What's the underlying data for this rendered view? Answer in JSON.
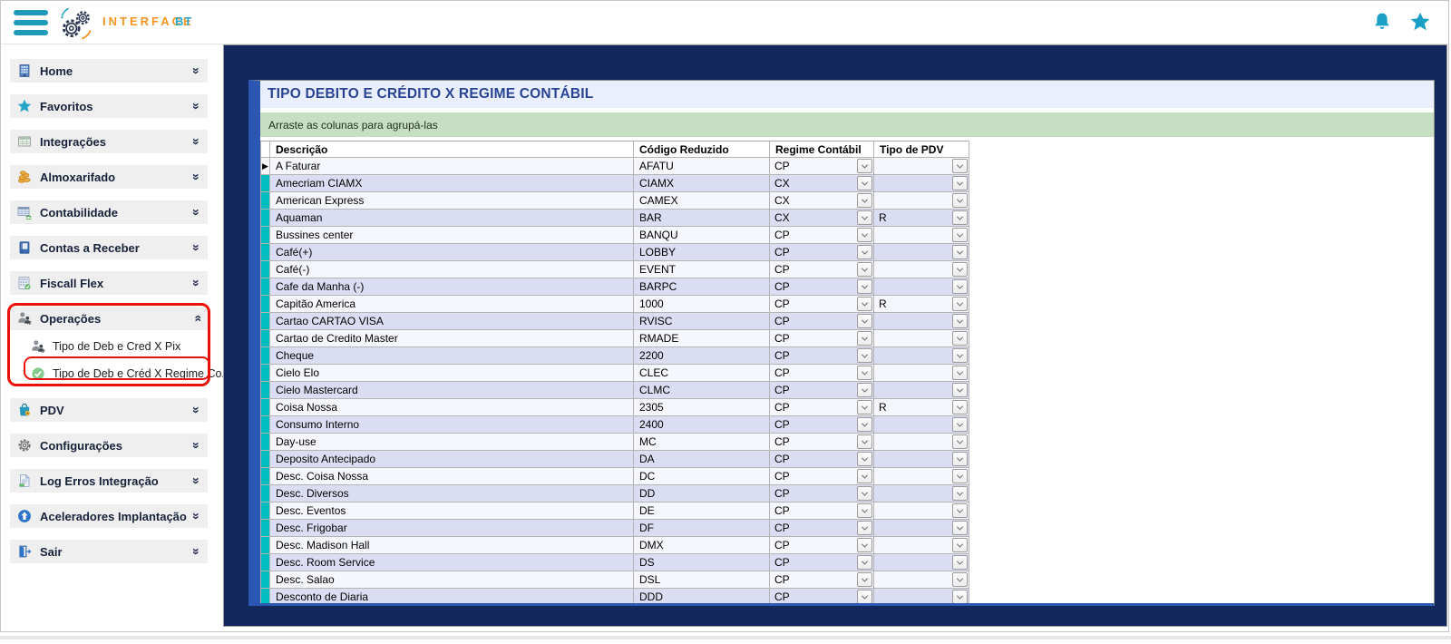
{
  "header": {
    "brand": "INTERFACE",
    "brand_suffix": "BT",
    "icons": [
      "hamburger-menu-icon",
      "gears-logo",
      "notifications-bell-icon",
      "favorites-star-icon"
    ],
    "accent_teal": "#1f9ab8",
    "accent_orange": "#f7941e"
  },
  "sidebar": {
    "items": [
      {
        "id": "home",
        "label": "Home",
        "icon": "building-icon"
      },
      {
        "id": "favoritos",
        "label": "Favoritos",
        "icon": "star-icon"
      },
      {
        "id": "integracoes",
        "label": "Integrações",
        "icon": "table-icon"
      },
      {
        "id": "almoxarifado",
        "label": "Almoxarifado",
        "icon": "coins-icon"
      },
      {
        "id": "contabilidade",
        "label": "Contabilidade",
        "icon": "spreadsheet-sync-icon"
      },
      {
        "id": "contas-a-receber",
        "label": "Contas a Receber",
        "icon": "ledger-book-icon"
      },
      {
        "id": "fiscall-flex",
        "label": "Fiscall Flex",
        "icon": "calculator-icon"
      },
      {
        "id": "operacoes",
        "label": "Operações",
        "icon": "users-gear-icon",
        "expanded": true,
        "children": [
          {
            "id": "tipo-deb-cred-pix",
            "label": "Tipo de Deb e Cred X Pix",
            "icon": "users-gear-icon"
          },
          {
            "id": "tipo-deb-cred-regime",
            "label": "Tipo de Deb e Créd X Regime Co...",
            "icon": "check-circle-icon",
            "annotated": true
          }
        ]
      },
      {
        "id": "pdv",
        "label": "PDV",
        "icon": "shopping-bag-icon"
      },
      {
        "id": "configuracoes",
        "label": "Configurações",
        "icon": "gear-icon"
      },
      {
        "id": "log-erros-integracao",
        "label": "Log Erros Integração",
        "icon": "log-file-icon"
      },
      {
        "id": "aceleradores-implantacao",
        "label": "Aceleradores Implantação",
        "icon": "up-arrow-circle-icon"
      },
      {
        "id": "sair",
        "label": "Sair",
        "icon": "exit-icon"
      }
    ],
    "annotation_color": "#ea1208"
  },
  "main": {
    "title": "TIPO DEBITO E CRÉDITO X REGIME CONTÁBIL",
    "group_hint": "Arraste as colunas para agrupá-las",
    "frame_color": "#12275c",
    "strip_color": "#2b57b3",
    "table": {
      "columns": [
        "Descrição",
        "Código Reduzido",
        "Regime Contábil",
        "Tipo de PDV"
      ],
      "indicator_color": "#00bdc0",
      "rows": [
        {
          "descricao": "A Faturar",
          "codigo": "AFATU",
          "regime": "CP",
          "tipo_pdv": "",
          "current": true
        },
        {
          "descricao": "Amecriam CIAMX",
          "codigo": "CIAMX",
          "regime": "CX",
          "tipo_pdv": ""
        },
        {
          "descricao": "American Express",
          "codigo": "CAMEX",
          "regime": "CX",
          "tipo_pdv": ""
        },
        {
          "descricao": "Aquaman",
          "codigo": "BAR",
          "regime": "CX",
          "tipo_pdv": "R"
        },
        {
          "descricao": "Bussines center",
          "codigo": "BANQU",
          "regime": "CP",
          "tipo_pdv": ""
        },
        {
          "descricao": "Café(+)",
          "codigo": "LOBBY",
          "regime": "CP",
          "tipo_pdv": ""
        },
        {
          "descricao": "Café(-)",
          "codigo": "EVENT",
          "regime": "CP",
          "tipo_pdv": ""
        },
        {
          "descricao": "Cafe da Manha (-)",
          "codigo": "BARPC",
          "regime": "CP",
          "tipo_pdv": ""
        },
        {
          "descricao": "Capitão America",
          "codigo": "1000",
          "regime": "CP",
          "tipo_pdv": "R"
        },
        {
          "descricao": "Cartao CARTAO VISA",
          "codigo": "RVISC",
          "regime": "CP",
          "tipo_pdv": ""
        },
        {
          "descricao": "Cartao de Credito Master",
          "codigo": "RMADE",
          "regime": "CP",
          "tipo_pdv": ""
        },
        {
          "descricao": "Cheque",
          "codigo": "2200",
          "regime": "CP",
          "tipo_pdv": ""
        },
        {
          "descricao": "Cielo Elo",
          "codigo": "CLEC",
          "regime": "CP",
          "tipo_pdv": ""
        },
        {
          "descricao": "Cielo Mastercard",
          "codigo": "CLMC",
          "regime": "CP",
          "tipo_pdv": ""
        },
        {
          "descricao": "Coisa Nossa",
          "codigo": "2305",
          "regime": "CP",
          "tipo_pdv": "R"
        },
        {
          "descricao": "Consumo Interno",
          "codigo": "2400",
          "regime": "CP",
          "tipo_pdv": ""
        },
        {
          "descricao": "Day-use",
          "codigo": "MC",
          "regime": "CP",
          "tipo_pdv": ""
        },
        {
          "descricao": "Deposito Antecipado",
          "codigo": "DA",
          "regime": "CP",
          "tipo_pdv": ""
        },
        {
          "descricao": "Desc. Coisa Nossa",
          "codigo": "DC",
          "regime": "CP",
          "tipo_pdv": ""
        },
        {
          "descricao": "Desc. Diversos",
          "codigo": "DD",
          "regime": "CP",
          "tipo_pdv": ""
        },
        {
          "descricao": "Desc. Eventos",
          "codigo": "DE",
          "regime": "CP",
          "tipo_pdv": ""
        },
        {
          "descricao": "Desc. Frigobar",
          "codigo": "DF",
          "regime": "CP",
          "tipo_pdv": ""
        },
        {
          "descricao": "Desc. Madison Hall",
          "codigo": "DMX",
          "regime": "CP",
          "tipo_pdv": ""
        },
        {
          "descricao": "Desc. Room Service",
          "codigo": "DS",
          "regime": "CP",
          "tipo_pdv": ""
        },
        {
          "descricao": "Desc. Salao",
          "codigo": "DSL",
          "regime": "CP",
          "tipo_pdv": ""
        },
        {
          "descricao": "Desconto de Diaria",
          "codigo": "DDD",
          "regime": "CP",
          "tipo_pdv": ""
        }
      ],
      "row_colors": {
        "odd": "#f6f7fd",
        "even": "#dbddf3"
      }
    }
  }
}
